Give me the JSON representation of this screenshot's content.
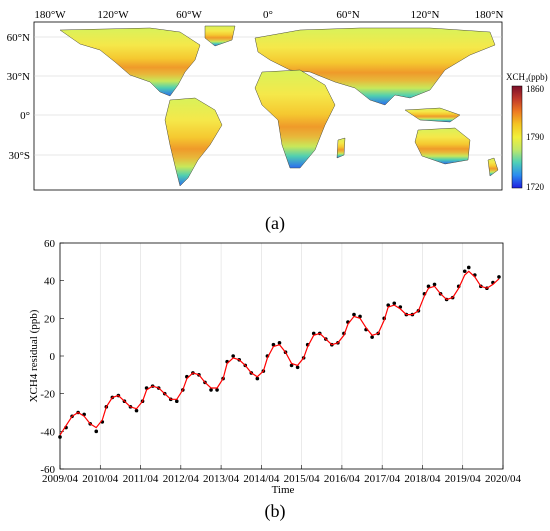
{
  "panel_a": {
    "label": "(a)",
    "lon_ticks": [
      "180°W",
      "120°W",
      "60°W",
      "0°",
      "60°N",
      "120°N",
      "180°N"
    ],
    "lat_ticks": [
      "60°N",
      "30°N",
      "0°",
      "30°S"
    ],
    "colorbar": {
      "title": "XCH₄(ppb)",
      "ticks": [
        "1860",
        "1790",
        "1720"
      ],
      "colors": [
        "#7a0f2a",
        "#c0392b",
        "#ee7a22",
        "#f4c422",
        "#f2f03a",
        "#bfe86a",
        "#4fd0b7",
        "#2a8cf0",
        "#1f1fe0"
      ]
    }
  },
  "panel_b": {
    "label": "(b)",
    "xlabel": "Time",
    "ylabel": "XCH4 residual (ppb)",
    "x_ticks": [
      "2009/04",
      "2010/04",
      "2011/04",
      "2012/04",
      "2013/04",
      "2014/04",
      "2015/04",
      "2016/04",
      "2017/04",
      "2018/04",
      "2019/04",
      "2020/04"
    ],
    "y_ticks": [
      "60",
      "40",
      "20",
      "0",
      "-20",
      "-40",
      "-60"
    ]
  },
  "chart_data": {
    "type": "scatter",
    "xlabel": "Time",
    "ylabel": "XCH4 residual (ppb)",
    "xlim": [
      2009.25,
      2020.25
    ],
    "ylim": [
      -60,
      60
    ],
    "grid": true,
    "series": [
      {
        "style": "points",
        "color": "#000000",
        "x": [
          2009.25,
          2009.4,
          2009.55,
          2009.7,
          2009.85,
          2010.0,
          2010.15,
          2010.3,
          2010.4,
          2010.55,
          2010.7,
          2010.85,
          2011.0,
          2011.15,
          2011.3,
          2011.4,
          2011.55,
          2011.7,
          2011.85,
          2012.0,
          2012.15,
          2012.3,
          2012.4,
          2012.55,
          2012.7,
          2012.85,
          2013.0,
          2013.15,
          2013.3,
          2013.4,
          2013.55,
          2013.7,
          2013.85,
          2014.0,
          2014.15,
          2014.3,
          2014.4,
          2014.55,
          2014.7,
          2014.85,
          2015.0,
          2015.15,
          2015.3,
          2015.4,
          2015.55,
          2015.7,
          2015.85,
          2016.0,
          2016.15,
          2016.3,
          2016.4,
          2016.55,
          2016.7,
          2016.85,
          2017.0,
          2017.15,
          2017.3,
          2017.4,
          2017.55,
          2017.7,
          2017.85,
          2018.0,
          2018.15,
          2018.3,
          2018.4,
          2018.55,
          2018.7,
          2018.85,
          2019.0,
          2019.15,
          2019.3,
          2019.4,
          2019.55,
          2019.7,
          2019.85,
          2020.0,
          2020.15
        ],
        "y": [
          -43,
          -38,
          -32,
          -30,
          -31,
          -36,
          -40,
          -35,
          -27,
          -22,
          -21,
          -24,
          -27,
          -29,
          -24,
          -17,
          -16,
          -17,
          -20,
          -23,
          -24,
          -18,
          -11,
          -9,
          -10,
          -14,
          -18,
          -18,
          -12,
          -3,
          0,
          -2,
          -5,
          -9,
          -12,
          -8,
          0,
          6,
          7,
          2,
          -5,
          -6,
          -1,
          6,
          12,
          12,
          9,
          6,
          7,
          12,
          18,
          22,
          21,
          14,
          10,
          12,
          20,
          27,
          28,
          26,
          22,
          22,
          24,
          33,
          37,
          38,
          33,
          30,
          31,
          37,
          45,
          47,
          43,
          37,
          36,
          39,
          42
        ]
      },
      {
        "style": "line",
        "color": "#ff0000",
        "x": [
          2009.25,
          2009.4,
          2009.55,
          2009.7,
          2009.85,
          2010.0,
          2010.15,
          2010.3,
          2010.4,
          2010.55,
          2010.7,
          2010.85,
          2011.0,
          2011.15,
          2011.3,
          2011.4,
          2011.55,
          2011.7,
          2011.85,
          2012.0,
          2012.15,
          2012.3,
          2012.4,
          2012.55,
          2012.7,
          2012.85,
          2013.0,
          2013.15,
          2013.3,
          2013.4,
          2013.55,
          2013.7,
          2013.85,
          2014.0,
          2014.15,
          2014.3,
          2014.4,
          2014.55,
          2014.7,
          2014.85,
          2015.0,
          2015.15,
          2015.3,
          2015.4,
          2015.55,
          2015.7,
          2015.85,
          2016.0,
          2016.15,
          2016.3,
          2016.4,
          2016.55,
          2016.7,
          2016.85,
          2017.0,
          2017.15,
          2017.3,
          2017.4,
          2017.55,
          2017.7,
          2017.85,
          2018.0,
          2018.15,
          2018.3,
          2018.4,
          2018.55,
          2018.7,
          2018.85,
          2019.0,
          2019.15,
          2019.3,
          2019.4,
          2019.55,
          2019.7,
          2019.85,
          2020.0,
          2020.15
        ],
        "y": [
          -42,
          -37,
          -32,
          -30,
          -32,
          -36,
          -38,
          -34,
          -27,
          -22,
          -21,
          -24,
          -27,
          -28,
          -24,
          -18,
          -16,
          -17,
          -20,
          -23,
          -23,
          -18,
          -12,
          -9,
          -10,
          -14,
          -17,
          -17,
          -12,
          -4,
          -1,
          -2,
          -5,
          -9,
          -11,
          -8,
          -1,
          5,
          6,
          2,
          -4,
          -5,
          -1,
          5,
          11,
          12,
          9,
          6,
          7,
          11,
          17,
          21,
          20,
          15,
          11,
          12,
          19,
          26,
          27,
          25,
          22,
          22,
          24,
          32,
          36,
          37,
          33,
          30,
          31,
          36,
          43,
          45,
          42,
          37,
          36,
          38,
          41
        ]
      }
    ]
  }
}
